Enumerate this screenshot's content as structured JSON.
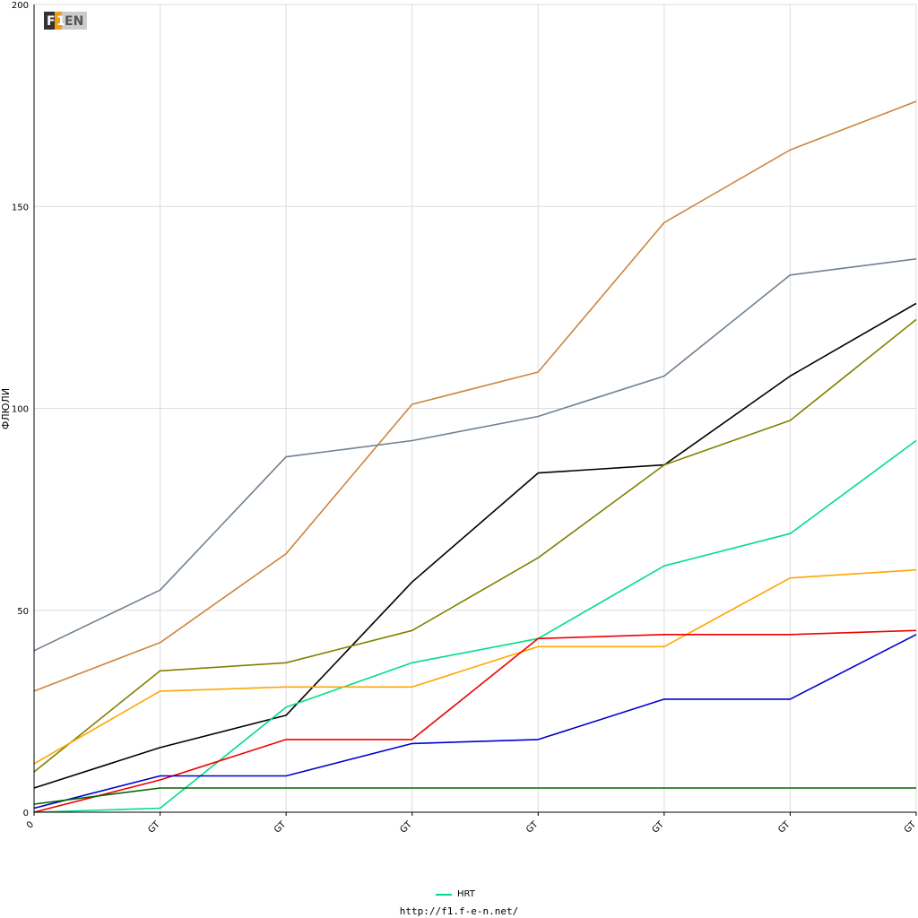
{
  "logo_text": "F1EN",
  "footer": {
    "url": "http://f1.f-e-n.net/"
  },
  "legend": [
    {
      "label": "HRT",
      "color": "#00dd88"
    }
  ],
  "chart_data": {
    "type": "line",
    "ylabel": "ФЛЮЛИ",
    "xlabel": "",
    "ylim": [
      0,
      200
    ],
    "yticks": [
      0,
      50,
      100,
      150,
      200
    ],
    "x": [
      0,
      1,
      2,
      3,
      4,
      5,
      6,
      7
    ],
    "xtick_labels": [
      "0",
      "GT",
      "GT",
      "GT",
      "GT",
      "GT",
      "GT",
      "GT"
    ],
    "grid": true,
    "legend_position": "bottom",
    "series": [
      {
        "color": "#cd853f",
        "values": [
          30,
          42,
          64,
          101,
          109,
          146,
          164,
          176
        ]
      },
      {
        "color": "#708090",
        "values": [
          40,
          55,
          88,
          92,
          98,
          108,
          133,
          137
        ]
      },
      {
        "color": "#000000",
        "values": [
          6,
          16,
          24,
          57,
          84,
          86,
          108,
          126
        ]
      },
      {
        "color": "#808000",
        "values": [
          10,
          35,
          37,
          45,
          63,
          86,
          97,
          122
        ]
      },
      {
        "name": "HRT",
        "color": "#00dd88",
        "values": [
          0,
          1,
          26,
          37,
          43,
          61,
          69,
          92
        ]
      },
      {
        "color": "#ffa500",
        "values": [
          12,
          30,
          31,
          31,
          41,
          41,
          58,
          60
        ]
      },
      {
        "color": "#ee0000",
        "values": [
          0,
          8,
          18,
          18,
          43,
          44,
          44,
          45
        ]
      },
      {
        "color": "#0000cc",
        "values": [
          1,
          9,
          9,
          17,
          18,
          28,
          28,
          44
        ]
      },
      {
        "color": "#006600",
        "values": [
          2,
          6,
          6,
          6,
          6,
          6,
          6,
          6
        ]
      }
    ]
  }
}
